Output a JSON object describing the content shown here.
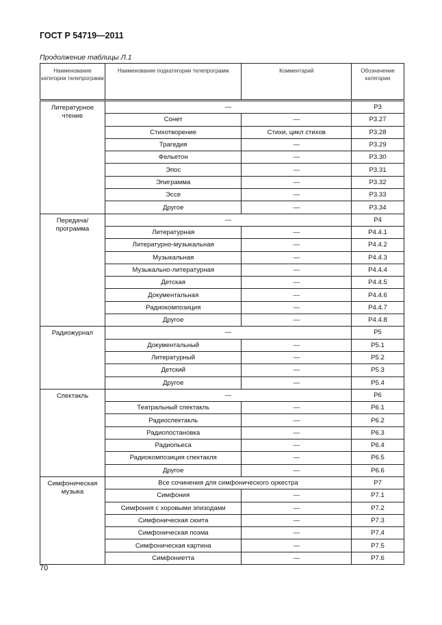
{
  "document": {
    "id": "ГОСТ Р 54719—2011",
    "caption": "Продолжение таблицы Л.1",
    "page_number": "70"
  },
  "table": {
    "headers": [
      "Наименование категории телепрограмм",
      "Наименование подкатегории телепрограмм",
      "Комментарий",
      "Обозначение категории"
    ],
    "groups": [
      {
        "category": "Литературное чтение",
        "main": "—",
        "code": "Р3",
        "rows": [
          [
            "Сонет",
            "—",
            "Р3.27"
          ],
          [
            "Стихотворение",
            "Стихи, цикл стихов",
            "Р3.28"
          ],
          [
            "Трагедия",
            "—",
            "Р3.29"
          ],
          [
            "Фельетон",
            "—",
            "Р3.30"
          ],
          [
            "Эпос",
            "—",
            "Р3.31"
          ],
          [
            "Эпиграмма",
            "—",
            "Р3.32"
          ],
          [
            "Эссе",
            "—",
            "Р3.33"
          ],
          [
            "Другое",
            "—",
            "Р3.34"
          ]
        ]
      },
      {
        "category": "Передача/ программа",
        "main": "—",
        "code": "Р4",
        "rows": [
          [
            "Литературная",
            "—",
            "Р4.4.1"
          ],
          [
            "Литературно-музыкальная",
            "—",
            "Р4.4.2"
          ],
          [
            "Музыкальная",
            "—",
            "Р4.4.3"
          ],
          [
            "Музыкально-литературная",
            "—",
            "Р4.4.4"
          ],
          [
            "Детская",
            "—",
            "Р4.4.5"
          ],
          [
            "Документальная",
            "—",
            "Р4.4.6"
          ],
          [
            "Радиокомпозиция",
            "—",
            "Р4.4.7"
          ],
          [
            "Другое",
            "—",
            "Р4.4.8"
          ]
        ]
      },
      {
        "category": "Радиожурнал",
        "main": "—",
        "code": "Р5",
        "rows": [
          [
            "Документальный",
            "—",
            "Р5.1"
          ],
          [
            "Литературный",
            "—",
            "Р5.2"
          ],
          [
            "Детский",
            "—",
            "Р5.3"
          ],
          [
            "Другое",
            "—",
            "Р5.4"
          ]
        ]
      },
      {
        "category": "Спектакль",
        "main": "—",
        "code": "Р6",
        "rows": [
          [
            "Театральный спектакль",
            "—",
            "Р6.1"
          ],
          [
            "Радиоспектакль",
            "—",
            "Р6.2"
          ],
          [
            "Радиопостановка",
            "—",
            "Р6.3"
          ],
          [
            "Радиопьеса",
            "—",
            "Р6.4"
          ],
          [
            "Радиокомпозиция спектакля",
            "—",
            "Р6.5"
          ],
          [
            "Другое",
            "—",
            "Р6.6"
          ]
        ]
      },
      {
        "category": "Симфоническая музыка",
        "main": "Все сочинения для симфонического оркестра",
        "code": "Р7",
        "rows": [
          [
            "Симфония",
            "—",
            "Р7.1"
          ],
          [
            "Симфония с хоровыми эпизодами",
            "—",
            "Р7.2"
          ],
          [
            "Симфоническая сюита",
            "—",
            "Р7.3"
          ],
          [
            "Симфоническая поэма",
            "—",
            "Р7.4"
          ],
          [
            "Симфоническая картина",
            "—",
            "Р7.5"
          ],
          [
            "Симфониетта",
            "—",
            "Р7.6"
          ]
        ]
      }
    ]
  }
}
